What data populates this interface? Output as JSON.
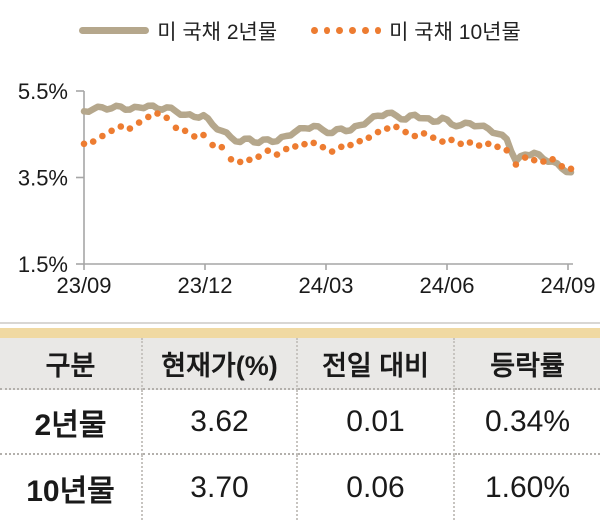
{
  "chart_data": {
    "type": "line",
    "title": "",
    "xlabel": "",
    "ylabel": "",
    "ylim": [
      1.5,
      5.5
    ],
    "grid": false,
    "legend_position": "top",
    "axis_color": "#a6a6a6",
    "y_ticks": [
      {
        "value": 5.5,
        "label": "5.5%"
      },
      {
        "value": 3.5,
        "label": "3.5%"
      },
      {
        "value": 1.5,
        "label": "1.5%"
      }
    ],
    "x_tick_labels": [
      "23/09",
      "23/12",
      "24/03",
      "24/06",
      "24/09"
    ],
    "x_unit": "weekly samples from 23/09 to 24/09",
    "series": [
      {
        "name": "미 국채 2년물",
        "style": "solid",
        "color": "#b5a78c",
        "values": [
          5.03,
          5.08,
          5.12,
          5.1,
          5.14,
          5.07,
          5.12,
          5.16,
          5.09,
          5.12,
          5.03,
          4.95,
          4.9,
          4.94,
          4.72,
          4.58,
          4.43,
          4.32,
          4.4,
          4.3,
          4.38,
          4.34,
          4.46,
          4.56,
          4.64,
          4.69,
          4.6,
          4.53,
          4.63,
          4.59,
          4.71,
          4.82,
          4.93,
          4.99,
          4.93,
          4.84,
          4.95,
          4.87,
          4.79,
          4.88,
          4.73,
          4.71,
          4.75,
          4.69,
          4.63,
          4.51,
          4.39,
          3.88,
          4.03,
          4.07,
          3.93,
          3.87,
          3.71,
          3.62
        ]
      },
      {
        "name": "미 국채 10년물",
        "style": "dotted",
        "color": "#ed7c31",
        "values": [
          4.28,
          4.33,
          4.46,
          4.58,
          4.68,
          4.63,
          4.77,
          4.9,
          4.98,
          4.88,
          4.65,
          4.58,
          4.45,
          4.48,
          4.25,
          4.2,
          3.92,
          3.86,
          3.91,
          3.98,
          4.12,
          4.03,
          4.16,
          4.22,
          4.27,
          4.3,
          4.2,
          4.1,
          4.21,
          4.25,
          4.34,
          4.42,
          4.55,
          4.63,
          4.67,
          4.55,
          4.46,
          4.52,
          4.42,
          4.33,
          4.37,
          4.28,
          4.31,
          4.24,
          4.28,
          4.21,
          4.13,
          3.8,
          3.96,
          3.9,
          3.87,
          3.92,
          3.76,
          3.7
        ]
      }
    ]
  },
  "table": {
    "accent_bar_color": "#f0d9a2",
    "headers": [
      "구분",
      "현재가(%)",
      "전일 대비",
      "등락률"
    ],
    "rows": [
      {
        "label": "2년물",
        "values": [
          "3.62",
          "0.01",
          "0.34%"
        ]
      },
      {
        "label": "10년물",
        "values": [
          "3.70",
          "0.06",
          "1.60%"
        ]
      }
    ]
  }
}
